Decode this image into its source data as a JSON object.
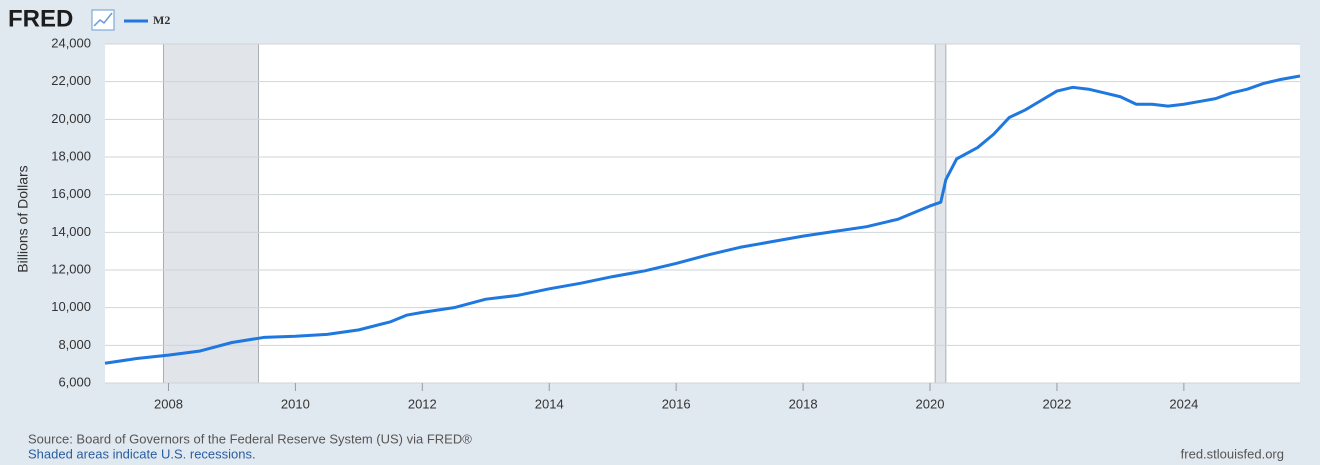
{
  "chart_data": {
    "type": "line",
    "logo": "FRED",
    "ylabel": "Billions of Dollars",
    "source": "Source: Board of Governors of the Federal Reserve System (US) via FRED®",
    "note": "Shaded areas indicate U.S. recessions.",
    "site": "fred.stlouisfed.org",
    "x": [
      2007.0,
      2007.5,
      2008.0,
      2008.5,
      2009.0,
      2009.5,
      2010.0,
      2010.5,
      2011.0,
      2011.5,
      2011.75,
      2012.0,
      2012.5,
      2013.0,
      2013.5,
      2014.0,
      2014.5,
      2015.0,
      2015.5,
      2016.0,
      2016.5,
      2017.0,
      2017.5,
      2018.0,
      2018.5,
      2019.0,
      2019.5,
      2020.0,
      2020.17,
      2020.25,
      2020.42,
      2020.75,
      2021.0,
      2021.25,
      2021.5,
      2021.75,
      2022.0,
      2022.25,
      2022.5,
      2022.75,
      2023.0,
      2023.25,
      2023.5,
      2023.75,
      2024.0,
      2024.25,
      2024.5,
      2024.75,
      2025.0,
      2025.25,
      2025.5,
      2025.83
    ],
    "series": [
      {
        "name": "M2",
        "color": "#1f77e0",
        "values": [
          7050,
          7300,
          7480,
          7700,
          8150,
          8420,
          8480,
          8580,
          8820,
          9250,
          9600,
          9750,
          10000,
          10450,
          10650,
          11000,
          11300,
          11650,
          11950,
          12350,
          12800,
          13200,
          13500,
          13800,
          14050,
          14300,
          14700,
          15400,
          15600,
          16800,
          17900,
          18500,
          19200,
          20100,
          20500,
          21000,
          21500,
          21700,
          21600,
          21400,
          21200,
          20800,
          20800,
          20700,
          20800,
          20950,
          21100,
          21400,
          21600,
          21900,
          22100,
          22300
        ]
      }
    ],
    "recessions": [
      [
        2007.92,
        2009.42
      ],
      [
        2020.08,
        2020.25
      ]
    ],
    "xlim": [
      2007.0,
      2025.83
    ],
    "xticks": [
      2008,
      2010,
      2012,
      2014,
      2016,
      2018,
      2020,
      2022,
      2024
    ],
    "ylim": [
      6000,
      24000
    ],
    "yticks": [
      {
        "value": 6000,
        "label": "6,000"
      },
      {
        "value": 8000,
        "label": "8,000"
      },
      {
        "value": 10000,
        "label": "10,000"
      },
      {
        "value": 12000,
        "label": "12,000"
      },
      {
        "value": 14000,
        "label": "14,000"
      },
      {
        "value": 16000,
        "label": "16,000"
      },
      {
        "value": 18000,
        "label": "18,000"
      },
      {
        "value": 20000,
        "label": "20,000"
      },
      {
        "value": 22000,
        "label": "22,000"
      },
      {
        "value": 24000,
        "label": "24,000"
      }
    ],
    "grid": true
  }
}
